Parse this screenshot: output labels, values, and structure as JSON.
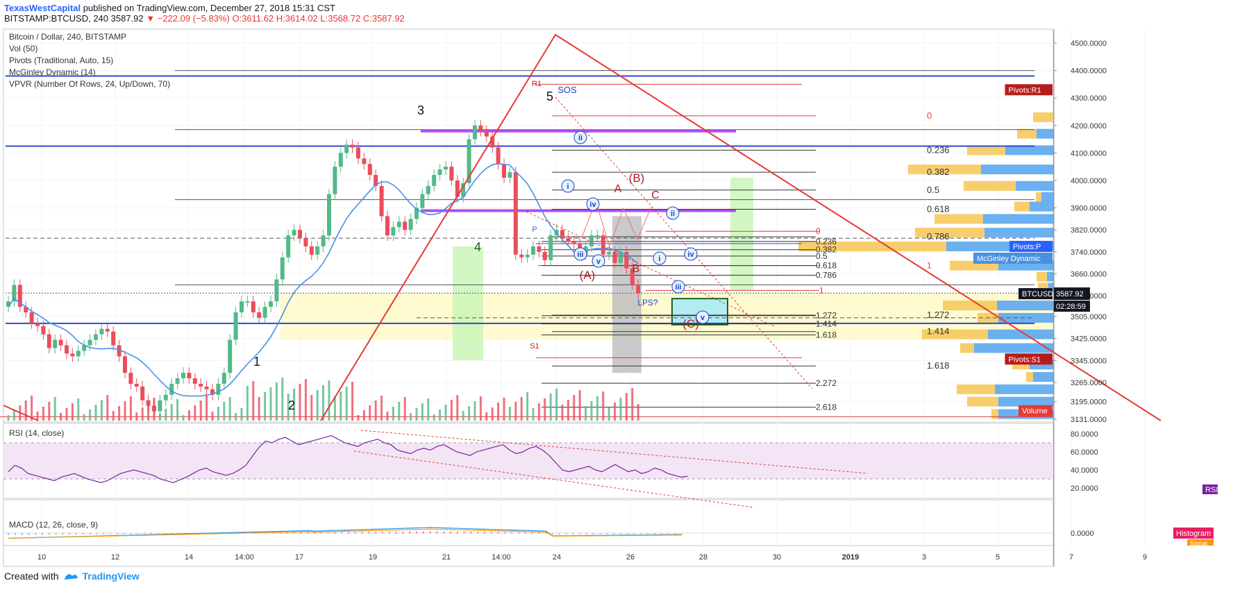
{
  "header": {
    "author": "TexasWestCapital",
    "published_text": "published on TradingView.com, December 27, 2018 15:31 CST",
    "quote_line": "BITSTAMP:BTCUSD, 240  3587.92",
    "change": "▼ −222.09 (−5.83%)",
    "ohlc": "O:3611.62  H:3614.02  L:3568.72  C:3587.92"
  },
  "legend": {
    "title": "Bitcoin / Dollar, 240, BITSTAMP",
    "items": [
      "Vol (50)",
      "Pivots (Traditional, Auto, 15)",
      "McGinley Dynamic (14)",
      "VPVR (Number Of Rows, 24, Up/Down, 70)"
    ]
  },
  "panes": {
    "rsi_title": "RSI (14, close)",
    "macd_title": "MACD (12, 26, close, 9)"
  },
  "footer": {
    "created_with": "Created with",
    "brand": "TradingView"
  },
  "colors": {
    "up": "#53b987",
    "down": "#eb4d5c",
    "red_line": "#e53935",
    "blue_line": "#2d48d8",
    "purple": "#b24bf3",
    "mcginley": "#4a90e2",
    "rsi": "#7b1fa2",
    "rsi_bg": "#f3e5f5",
    "zone_yellow": "#fff9c4",
    "zone_green": "#c8f5b4",
    "zone_gray": "#bdbdbd",
    "vp_up": "#f7c95c",
    "vp_down": "#5ba7ee"
  },
  "chart_data": {
    "type": "candlestick",
    "symbol": "BTCUSD",
    "exchange": "BITSTAMP",
    "interval": "240",
    "last_price": 3587.92,
    "countdown": "02:28:59",
    "ylim": [
      3110,
      4580
    ],
    "y_ticks": [
      4500,
      4400,
      4300,
      4200,
      4100,
      4000,
      3900,
      3820,
      3740,
      3660,
      3580,
      3505,
      3425,
      3345,
      3265,
      3195,
      3131
    ],
    "y_tick_labels": [
      "4500.0000",
      "4400.0000",
      "4300.0000",
      "4200.0000",
      "4100.0000",
      "4000.0000",
      "3900.0000",
      "3820.0000",
      "3740.0000",
      "3660.0000",
      "3580.0000",
      "3505.0000",
      "3425.0000",
      "3345.0000",
      "3265.0000",
      "3195.0000",
      "3131.0000"
    ],
    "x_ticks": [
      "10",
      "12",
      "14",
      "14:00",
      "17",
      "19",
      "21",
      "14:00",
      "24",
      "26",
      "28",
      "30",
      "2019",
      "3",
      "5",
      "7",
      "9"
    ],
    "price_badges": [
      {
        "label": "Pivots:R1",
        "value": 4330,
        "color": "#b71c1c"
      },
      {
        "label": "Pivots:P",
        "value": 3760,
        "color": "#2962ff"
      },
      {
        "label": "McGinley Dynamic",
        "value": 3717,
        "color": "#4a90e2"
      },
      {
        "label": "BTCUSD",
        "value": 3587.92,
        "color": "#131722"
      },
      {
        "label": "Pivots:S1",
        "value": 3350,
        "color": "#b71c1c"
      },
      {
        "label": "Volume",
        "value": 3162,
        "color": "#e53935"
      }
    ],
    "wave_labels": [
      "1",
      "2",
      "3",
      "4",
      "5",
      "SOS",
      "i",
      "ii",
      "iii",
      "iv",
      "v",
      "(A)",
      "(B)",
      "(C)",
      "A",
      "B",
      "C",
      "i",
      "ii",
      "iii",
      "iv",
      "v",
      "LPS?"
    ],
    "pivot_labels": [
      "R1",
      "P",
      "S1"
    ],
    "fib_retracement_1": [
      "0",
      "0.236",
      "0.382",
      "0.5",
      "0.618",
      "0.786",
      "1",
      "1.272",
      "1.414",
      "1.618",
      "2.272",
      "2.618"
    ],
    "fib_retracement_2": [
      "0.236",
      "0.382",
      "0.5",
      "0.618",
      "0.786",
      "1.272",
      "1.414",
      "1.618"
    ],
    "fib_retracement_3": [
      "0",
      "1",
      "1"
    ],
    "rsi": {
      "label": "RSI",
      "ylim": [
        10,
        90
      ],
      "ticks": [
        "80.0000",
        "60.0000",
        "40.0000",
        "20.0000"
      ],
      "upper": 70,
      "lower": 30
    },
    "macd": {
      "ticks": [
        "0.0000"
      ],
      "badges": [
        "Histogram",
        "Signal"
      ]
    }
  }
}
